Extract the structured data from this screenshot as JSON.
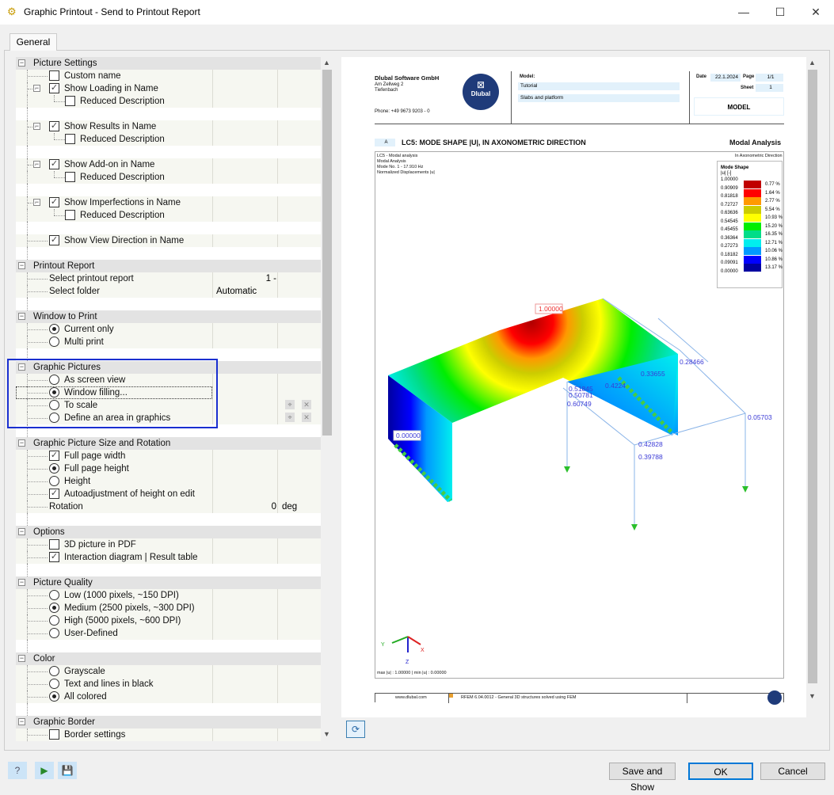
{
  "window": {
    "title": "Graphic Printout - Send to Printout Report",
    "minimize": "—",
    "maximize": "☐",
    "close": "✕"
  },
  "tab": "General",
  "tree": [
    {
      "type": "header",
      "label": "Picture Settings"
    },
    {
      "type": "item",
      "label": "Custom name",
      "control": "checkbox",
      "checked": false,
      "level": 1
    },
    {
      "type": "item",
      "label": "Show Loading in Name",
      "control": "checkbox",
      "checked": true,
      "level": 1,
      "expander": true
    },
    {
      "type": "item",
      "label": "Reduced Description",
      "control": "checkbox",
      "checked": false,
      "level": 2
    },
    {
      "type": "blank"
    },
    {
      "type": "item",
      "label": "Show Results in Name",
      "control": "checkbox",
      "checked": true,
      "level": 1,
      "expander": true
    },
    {
      "type": "item",
      "label": "Reduced Description",
      "control": "checkbox",
      "checked": false,
      "level": 2
    },
    {
      "type": "blank"
    },
    {
      "type": "item",
      "label": "Show Add-on in Name",
      "control": "checkbox",
      "checked": true,
      "level": 1,
      "expander": true
    },
    {
      "type": "item",
      "label": "Reduced Description",
      "control": "checkbox",
      "checked": false,
      "level": 2
    },
    {
      "type": "blank"
    },
    {
      "type": "item",
      "label": "Show Imperfections in Name",
      "control": "checkbox",
      "checked": true,
      "level": 1,
      "expander": true
    },
    {
      "type": "item",
      "label": "Reduced Description",
      "control": "checkbox",
      "checked": false,
      "level": 2
    },
    {
      "type": "blank"
    },
    {
      "type": "item",
      "label": "Show View Direction in Name",
      "control": "checkbox",
      "checked": true,
      "level": 1
    },
    {
      "type": "blank"
    },
    {
      "type": "header",
      "label": "Printout Report"
    },
    {
      "type": "item",
      "label": "Select printout report",
      "control": "none",
      "level": 1,
      "value": "1 -"
    },
    {
      "type": "item",
      "label": "Select folder",
      "control": "none",
      "level": 1,
      "value": "Automatic",
      "value_align": "left"
    },
    {
      "type": "blank"
    },
    {
      "type": "header",
      "label": "Window to Print"
    },
    {
      "type": "item",
      "label": "Current only",
      "control": "radio",
      "checked": true,
      "level": 1
    },
    {
      "type": "item",
      "label": "Multi print",
      "control": "radio",
      "checked": false,
      "level": 1
    },
    {
      "type": "blank"
    },
    {
      "type": "header",
      "label": "Graphic Pictures"
    },
    {
      "type": "item",
      "label": "As screen view",
      "control": "radio",
      "checked": false,
      "level": 1
    },
    {
      "type": "item",
      "label": "Window filling...",
      "control": "radio",
      "checked": true,
      "level": 1,
      "focused": true
    },
    {
      "type": "item",
      "label": "To scale",
      "control": "radio",
      "checked": false,
      "level": 1,
      "buttons": true
    },
    {
      "type": "item",
      "label": "Define an area in graphics",
      "control": "radio",
      "checked": false,
      "level": 1,
      "buttons": true
    },
    {
      "type": "blank"
    },
    {
      "type": "header",
      "label": "Graphic Picture Size and Rotation"
    },
    {
      "type": "item",
      "label": "Full page width",
      "control": "checkbox",
      "checked": true,
      "level": 1
    },
    {
      "type": "item",
      "label": "Full page height",
      "control": "radio",
      "checked": true,
      "level": 1
    },
    {
      "type": "item",
      "label": "Height",
      "control": "radio",
      "checked": false,
      "level": 1
    },
    {
      "type": "item",
      "label": "Autoadjustment of height on edit",
      "control": "checkbox",
      "checked": true,
      "level": 1
    },
    {
      "type": "item",
      "label": "Rotation",
      "control": "none",
      "level": 1,
      "value": "0",
      "unit": "deg"
    },
    {
      "type": "blank"
    },
    {
      "type": "header",
      "label": "Options"
    },
    {
      "type": "item",
      "label": "3D picture in PDF",
      "control": "checkbox",
      "checked": false,
      "level": 1
    },
    {
      "type": "item",
      "label": "Interaction diagram | Result table",
      "control": "checkbox",
      "checked": true,
      "level": 1
    },
    {
      "type": "blank"
    },
    {
      "type": "header",
      "label": "Picture Quality"
    },
    {
      "type": "item",
      "label": "Low (1000 pixels, ~150 DPI)",
      "control": "radio",
      "checked": false,
      "level": 1
    },
    {
      "type": "item",
      "label": "Medium (2500 pixels, ~300 DPI)",
      "control": "radio",
      "checked": true,
      "level": 1
    },
    {
      "type": "item",
      "label": "High (5000 pixels, ~600 DPI)",
      "control": "radio",
      "checked": false,
      "level": 1
    },
    {
      "type": "item",
      "label": "User-Defined",
      "control": "radio",
      "checked": false,
      "level": 1
    },
    {
      "type": "blank"
    },
    {
      "type": "header",
      "label": "Color"
    },
    {
      "type": "item",
      "label": "Grayscale",
      "control": "radio",
      "checked": false,
      "level": 1
    },
    {
      "type": "item",
      "label": "Text and lines in black",
      "control": "radio",
      "checked": false,
      "level": 1
    },
    {
      "type": "item",
      "label": "All colored",
      "control": "radio",
      "checked": true,
      "level": 1
    },
    {
      "type": "blank"
    },
    {
      "type": "header",
      "label": "Graphic Border"
    },
    {
      "type": "item",
      "label": "Border settings",
      "control": "checkbox",
      "checked": false,
      "level": 1
    }
  ],
  "page": {
    "company": "Dlubal Software GmbH",
    "street": "Am Zellweg 2",
    "city": "Tiefenbach",
    "phone": "Phone: +49 9673 9203 - 0",
    "logo": "Dlubal",
    "model_label": "Model:",
    "model_name": "Tutorial",
    "model_desc": "Slabs and platform",
    "date_label": "Date",
    "date": "22.1.2024",
    "page_label": "Page",
    "page": "1/1",
    "sheet_label": "Sheet",
    "sheet": "1",
    "section": "MODEL",
    "chapter": "A",
    "heading": "LC5: MODE SHAPE |U|, IN AXONOMETRIC DIRECTION",
    "heading_right": "Modal Analysis",
    "info": [
      "LC5 - Modal analysis",
      "Modal Analysis",
      "Mode No. 1 - 17.910 Hz",
      "Normalized Displacements |u|"
    ],
    "direction": "In Axonometric Direction",
    "legend": {
      "title": "Mode Shape",
      "unit": "|u| [-]",
      "values": [
        "1.00000",
        "0.90909",
        "0.81818",
        "0.72727",
        "0.63636",
        "0.54545",
        "0.45455",
        "0.36364",
        "0.27273",
        "0.18182",
        "0.09091",
        "0.00000"
      ],
      "colors": [
        "#c00000",
        "#ff0000",
        "#ff9900",
        "#cccc00",
        "#ffff00",
        "#00ee00",
        "#00dd88",
        "#00eeee",
        "#0099ff",
        "#0000ff",
        "#0000a0"
      ],
      "percents": [
        "0.77 %",
        "1.64 %",
        "2.77 %",
        "5.54 %",
        "10.93 %",
        "15.20 %",
        "16.35 %",
        "12.71 %",
        "10.06 %",
        "10.86 %",
        "13.17 %"
      ]
    },
    "labels": {
      "max": "1.00000",
      "min": "0.00000",
      "n1": "0.28466",
      "n2": "0.33655",
      "n3": "0.4224",
      "n4": "0.51845",
      "n5": "0.50781",
      "n6": "0.60749",
      "n7": "0.05703",
      "n8": "0.42828",
      "n9": "0.39788"
    },
    "axes": {
      "y": "Y",
      "z": "Z",
      "x": "X"
    },
    "maxmin": "max |u| : 1.00000 | min |u| : 0.00000",
    "footer_url": "www.dlubal.com",
    "footer_text": "RFEM 6.04.0012 - General 3D structures solved using FEM"
  },
  "buttons": {
    "save_show": "Save and Show",
    "ok": "OK",
    "cancel": "Cancel"
  }
}
